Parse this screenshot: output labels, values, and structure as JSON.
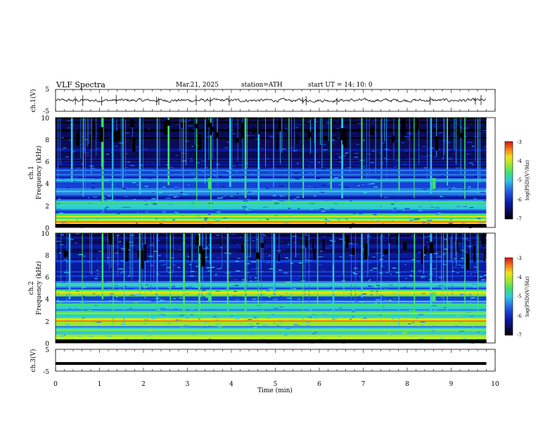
{
  "header": {
    "title": "VLF  Spectra",
    "date": "Mar.21, 2025",
    "station": "station=ATH",
    "start_ut": "start  UT  =   14: 10: 0"
  },
  "colors": {
    "spec_scale": [
      "#000000",
      "#0b0b55",
      "#0a1a9e",
      "#1740d6",
      "#2a7be8",
      "#2fc9e0",
      "#3ee070",
      "#9be92a",
      "#f0e21c",
      "#f07d12",
      "#d3131a",
      "#f0a0a0",
      "#ffffff"
    ]
  },
  "chart_data": [
    {
      "type": "line",
      "name": "ch1-waveform",
      "ylabel": "ch.1(V)",
      "ylim": [
        -5,
        5
      ],
      "y_ticks": [
        "5",
        "-5"
      ],
      "xlim": [
        0,
        10
      ],
      "baseline_v": 0.0,
      "noise_v": 0.7,
      "spike_times_min": [
        0.45,
        0.62,
        1.05,
        1.38,
        2.3,
        2.35,
        3.2,
        3.52,
        3.95,
        5.62,
        5.7,
        6.4,
        8.52,
        9.55,
        9.68
      ]
    },
    {
      "type": "heatmap",
      "name": "ch1-spectrogram",
      "ylabel": "Frequency (kHz)",
      "channel_label": "ch.1",
      "ylim": [
        0,
        10
      ],
      "y_ticks": [
        "10",
        "8",
        "6",
        "4",
        "2",
        "0"
      ],
      "xlim": [
        0,
        9.8
      ],
      "colorbar": {
        "label": "log(PSD)(V²/Hz)",
        "range": [
          -7,
          -3
        ],
        "ticks": [
          "-3",
          "-4",
          "-5",
          "-6",
          "-7"
        ]
      },
      "bands_khz": [
        {
          "f": 0.5,
          "level": -3.6
        },
        {
          "f": 1.0,
          "level": -4.2
        },
        {
          "f": 2.0,
          "level": -4.7
        },
        {
          "f": 2.3,
          "level": -4.9
        },
        {
          "f": 3.3,
          "level": -5.2
        },
        {
          "f": 4.3,
          "level": -5.5
        },
        {
          "f": 4.8,
          "level": -5.6
        },
        {
          "f": 5.2,
          "level": -5.7
        }
      ],
      "sferic_times_min": [
        0.35,
        0.62,
        1.05,
        1.28,
        1.52,
        1.9,
        2.3,
        2.55,
        2.9,
        3.2,
        3.52,
        3.95,
        4.3,
        4.6,
        4.95,
        5.3,
        5.62,
        5.9,
        6.25,
        6.5,
        6.95,
        7.4,
        7.8,
        8.15,
        8.52,
        8.9,
        9.3,
        9.6
      ],
      "bursts": [
        {
          "t": 3.5,
          "f": [
            3.5,
            4.5
          ]
        },
        {
          "t": 8.6,
          "f": [
            3.5,
            4.5
          ]
        }
      ]
    },
    {
      "type": "heatmap",
      "name": "ch2-spectrogram",
      "ylabel": "Frequency (kHz)",
      "channel_label": "ch.2",
      "ylim": [
        0,
        10
      ],
      "y_ticks": [
        "10",
        "8",
        "6",
        "4",
        "2",
        "0"
      ],
      "xlim": [
        0,
        9.8
      ],
      "colorbar": {
        "label": "log(PSD)(V²/Hz)",
        "range": [
          -7,
          -3
        ],
        "ticks": [
          "-3",
          "-4",
          "-5",
          "-6",
          "-7"
        ]
      },
      "bands_khz": [
        {
          "f": 0.5,
          "level": -4.0
        },
        {
          "f": 1.2,
          "level": -4.6
        },
        {
          "f": 2.0,
          "level": -3.9
        },
        {
          "f": 2.7,
          "level": -4.6
        },
        {
          "f": 3.5,
          "level": -4.7
        },
        {
          "f": 4.6,
          "level": -4.1
        },
        {
          "f": 5.4,
          "level": -5.0
        }
      ],
      "sferic_times_min": [
        0.3,
        0.6,
        1.05,
        1.3,
        1.55,
        1.9,
        2.3,
        2.6,
        2.9,
        3.25,
        3.52,
        3.9,
        4.3,
        4.6,
        4.95,
        5.35,
        5.62,
        5.95,
        6.3,
        6.55,
        6.95,
        7.4,
        7.8,
        8.15,
        8.52,
        8.9,
        9.3,
        9.6
      ],
      "bursts": [
        {
          "t": 3.5,
          "f": [
            3.8,
            4.6
          ]
        },
        {
          "t": 8.6,
          "f": [
            3.8,
            4.6
          ]
        }
      ]
    },
    {
      "type": "line",
      "name": "ch3-waveform",
      "ylabel": "ch.3(V)",
      "ylim": [
        -5,
        5
      ],
      "y_ticks": [
        "5",
        "-5"
      ],
      "xlim": [
        0,
        10
      ],
      "level_v": -1.5,
      "xlabel": "Time  (min)",
      "x_ticks": [
        "0",
        "1",
        "2",
        "3",
        "4",
        "5",
        "6",
        "7",
        "8",
        "9",
        "10"
      ]
    }
  ]
}
